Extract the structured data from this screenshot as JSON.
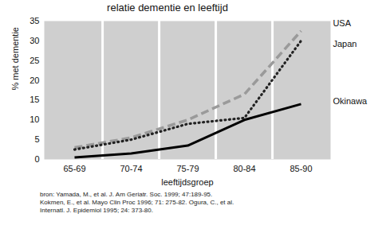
{
  "chart_data": {
    "type": "line",
    "title": "relatie dementie en leeftijd",
    "x_label": "leeftijdsgroep",
    "y_label": "% met dementie",
    "categories": [
      "65-69",
      "70-74",
      "75-79",
      "80-84",
      "85-90"
    ],
    "series": [
      {
        "name": "USA",
        "color": "#9a9a9a",
        "line_style": "dashed",
        "values": [
          3,
          5.5,
          10,
          16.5,
          32.5
        ]
      },
      {
        "name": "Japan",
        "color": "#222222",
        "line_style": "dotted",
        "values": [
          2.5,
          5,
          9,
          10.5,
          30
        ]
      },
      {
        "name": "Okinawa",
        "color": "#000000",
        "line_style": "solid",
        "values": [
          0.5,
          1.5,
          3.5,
          10,
          14
        ]
      }
    ],
    "ylim": [
      0,
      35
    ],
    "yticks": [
      0,
      5,
      10,
      15,
      20,
      25,
      30,
      35
    ],
    "grid": true,
    "source": [
      "bron: Yamada, M., et al. J. Am Geriatr. Soc. 1999; 47:189-95.",
      "Kokmen, E., et al. Mayo Clin Proc 1996; 71: 275-82. Ogura, C., et al.",
      "Internatl. J. Epidemiol 1995; 24: 373-80."
    ]
  }
}
